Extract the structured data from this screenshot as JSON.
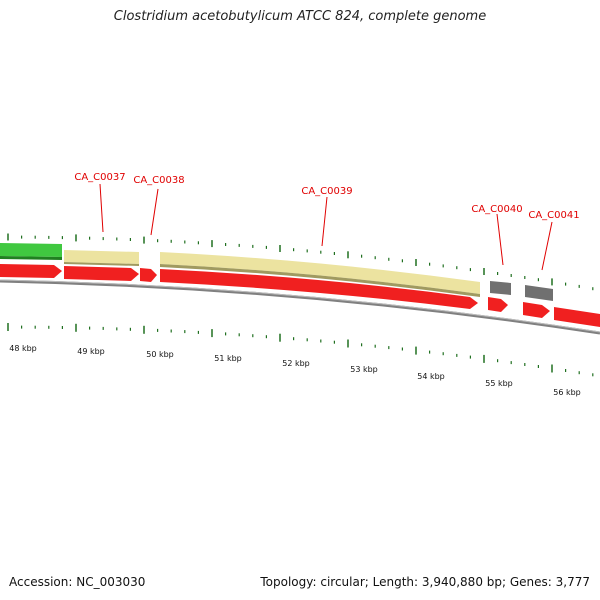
{
  "title": "Clostridium acetobutylicum ATCC 824, complete genome",
  "footer": {
    "accession": "Accession: NC_003030",
    "summary": "Topology: circular; Length: 3,940,880 bp; Genes: 3,777"
  },
  "colors": {
    "backbone": "#808080",
    "cds_forward": "#f02020",
    "gene_pale": "#ece3a0",
    "gene_green": "#40c840",
    "gene_gray": "#707070",
    "label_red": "#e00000",
    "tick_green": "#207020"
  },
  "scale": {
    "ticks_kbp": [
      48,
      49,
      50,
      51,
      52,
      53,
      54,
      55,
      56
    ],
    "tick_labels": [
      "48 kbp",
      "49 kbp",
      "50 kbp",
      "51 kbp",
      "52 kbp",
      "53 kbp",
      "54 kbp",
      "55 kbp",
      "56 kbp"
    ]
  },
  "features": {
    "labels": [
      "CA_C0037",
      "CA_C0038",
      "CA_C0039",
      "CA_C0040",
      "CA_C0041"
    ]
  }
}
